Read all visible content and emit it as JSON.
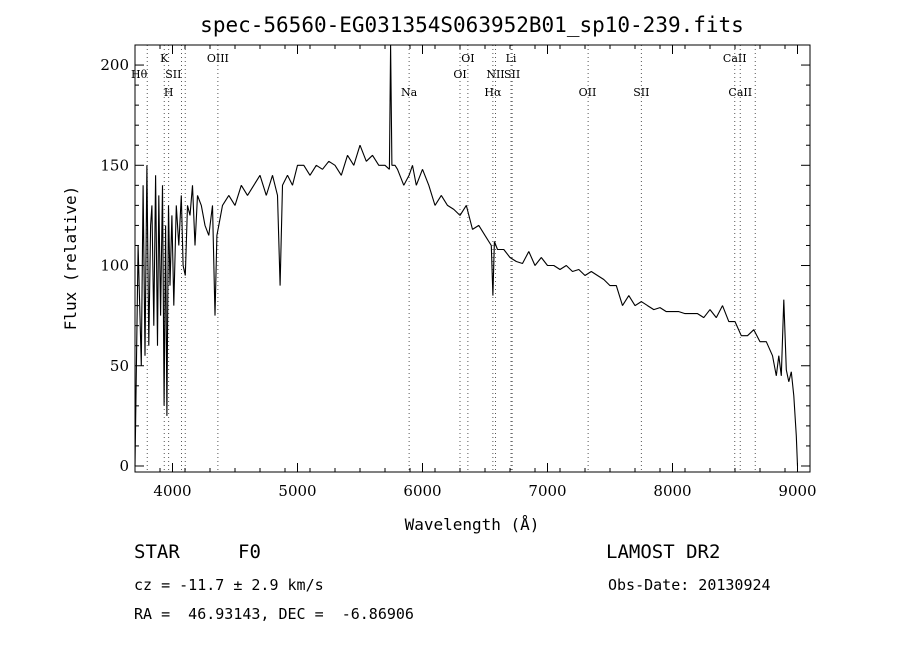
{
  "chart_data": {
    "type": "line",
    "title": "spec-56560-EG031354S063952B01_sp10-239.fits",
    "xlabel": "Wavelength (Å)",
    "ylabel": "Flux (relative)",
    "xlim": [
      3700,
      9100
    ],
    "ylim": [
      -3,
      210
    ],
    "xticks": [
      4000,
      5000,
      6000,
      7000,
      8000,
      9000
    ],
    "yticks": [
      0,
      50,
      100,
      150,
      200
    ],
    "series": [
      {
        "x": [
          3700,
          3725,
          3750,
          3765,
          3780,
          3795,
          3810,
          3825,
          3835,
          3850,
          3865,
          3880,
          3890,
          3905,
          3920,
          3933,
          3945,
          3955,
          3968,
          3980,
          3995,
          4010,
          4030,
          4050,
          4070,
          4085,
          4102,
          4120,
          4140,
          4160,
          4180,
          4200,
          4230,
          4260,
          4290,
          4320,
          4340,
          4355,
          4370,
          4400,
          4450,
          4500,
          4550,
          4600,
          4650,
          4700,
          4750,
          4800,
          4840,
          4861,
          4880,
          4920,
          4960,
          5000,
          5050,
          5100,
          5150,
          5200,
          5250,
          5300,
          5350,
          5400,
          5450,
          5500,
          5550,
          5600,
          5650,
          5700,
          5735,
          5745,
          5755,
          5780,
          5800,
          5850,
          5893,
          5920,
          5950,
          6000,
          6050,
          6100,
          6150,
          6200,
          6250,
          6300,
          6350,
          6400,
          6450,
          6500,
          6550,
          6563,
          6575,
          6600,
          6650,
          6700,
          6750,
          6800,
          6850,
          6900,
          6950,
          7000,
          7050,
          7100,
          7150,
          7200,
          7250,
          7300,
          7350,
          7400,
          7450,
          7500,
          7550,
          7600,
          7650,
          7700,
          7750,
          7800,
          7850,
          7900,
          7950,
          8000,
          8050,
          8100,
          8150,
          8200,
          8250,
          8300,
          8350,
          8400,
          8450,
          8500,
          8550,
          8600,
          8650,
          8700,
          8750,
          8800,
          8830,
          8850,
          8870,
          8890,
          8910,
          8930,
          8950,
          8970,
          8990,
          9000
        ],
        "y": [
          0,
          110,
          50,
          140,
          55,
          150,
          60,
          120,
          130,
          70,
          145,
          60,
          135,
          75,
          140,
          30,
          120,
          25,
          130,
          90,
          125,
          80,
          130,
          110,
          135,
          100,
          95,
          130,
          125,
          140,
          110,
          135,
          130,
          120,
          115,
          130,
          75,
          115,
          120,
          130,
          135,
          130,
          140,
          135,
          140,
          145,
          135,
          145,
          135,
          90,
          140,
          145,
          140,
          150,
          150,
          145,
          150,
          148,
          152,
          150,
          145,
          155,
          150,
          160,
          152,
          155,
          150,
          150,
          148,
          210,
          150,
          150,
          148,
          140,
          145,
          150,
          140,
          148,
          140,
          130,
          135,
          130,
          128,
          125,
          130,
          118,
          120,
          115,
          110,
          85,
          112,
          108,
          108,
          104,
          102,
          101,
          107,
          100,
          104,
          100,
          100,
          98,
          100,
          97,
          98,
          95,
          97,
          95,
          93,
          90,
          90,
          80,
          85,
          80,
          82,
          80,
          78,
          79,
          77,
          77,
          77,
          76,
          76,
          76,
          74,
          78,
          74,
          80,
          72,
          72,
          65,
          65,
          68,
          62,
          62,
          55,
          45,
          55,
          45,
          83,
          48,
          42,
          47,
          35,
          15,
          0
        ]
      }
    ],
    "lines": [
      {
        "label": "Hθ",
        "x": 3798,
        "row": 2,
        "align": "end"
      },
      {
        "label": "K",
        "x": 3934,
        "row": 1,
        "align": "middle"
      },
      {
        "label": "H",
        "x": 3969,
        "row": 3,
        "align": "middle"
      },
      {
        "label": "SII",
        "x": 4072,
        "row": 2,
        "align": "end"
      },
      {
        "label": "OIII",
        "x": 4363,
        "row": 1,
        "align": "middle"
      },
      {
        "label": "Na",
        "x": 5893,
        "row": 3,
        "align": "middle"
      },
      {
        "label": "OI",
        "x": 6300,
        "row": 2,
        "align": "middle"
      },
      {
        "label": "OI",
        "x": 6363,
        "row": 1,
        "align": "middle"
      },
      {
        "label": "Hα",
        "x": 6563,
        "row": 3,
        "align": "middle"
      },
      {
        "label": "NII",
        "x": 6584,
        "row": 2,
        "align": "middle"
      },
      {
        "label": "Li",
        "x": 6708,
        "row": 1,
        "align": "middle"
      },
      {
        "label": "SII",
        "x": 6717,
        "row": 2,
        "align": "middle"
      },
      {
        "label": "OII",
        "x": 7320,
        "row": 3,
        "align": "middle"
      },
      {
        "label": "SII",
        "x": 7751,
        "row": 3,
        "align": "middle"
      },
      {
        "label": "CaII",
        "x": 8498,
        "row": 1,
        "align": "middle"
      },
      {
        "label": "CaII",
        "x": 8542,
        "row": 3,
        "align": "middle"
      }
    ],
    "guides": [
      3798,
      3934,
      3969,
      4072,
      4102,
      4363,
      5893,
      6300,
      6363,
      6563,
      6584,
      6708,
      6717,
      7325,
      7751,
      8498,
      8542,
      8662
    ]
  },
  "info": {
    "class": "STAR",
    "subclass": "F0",
    "survey": "LAMOST DR2",
    "cz": "cz = -11.7 ± 2.9 km/s",
    "obs_date": "Obs-Date: 20130924",
    "coords": "RA =  46.93143, DEC =  -6.86906"
  }
}
